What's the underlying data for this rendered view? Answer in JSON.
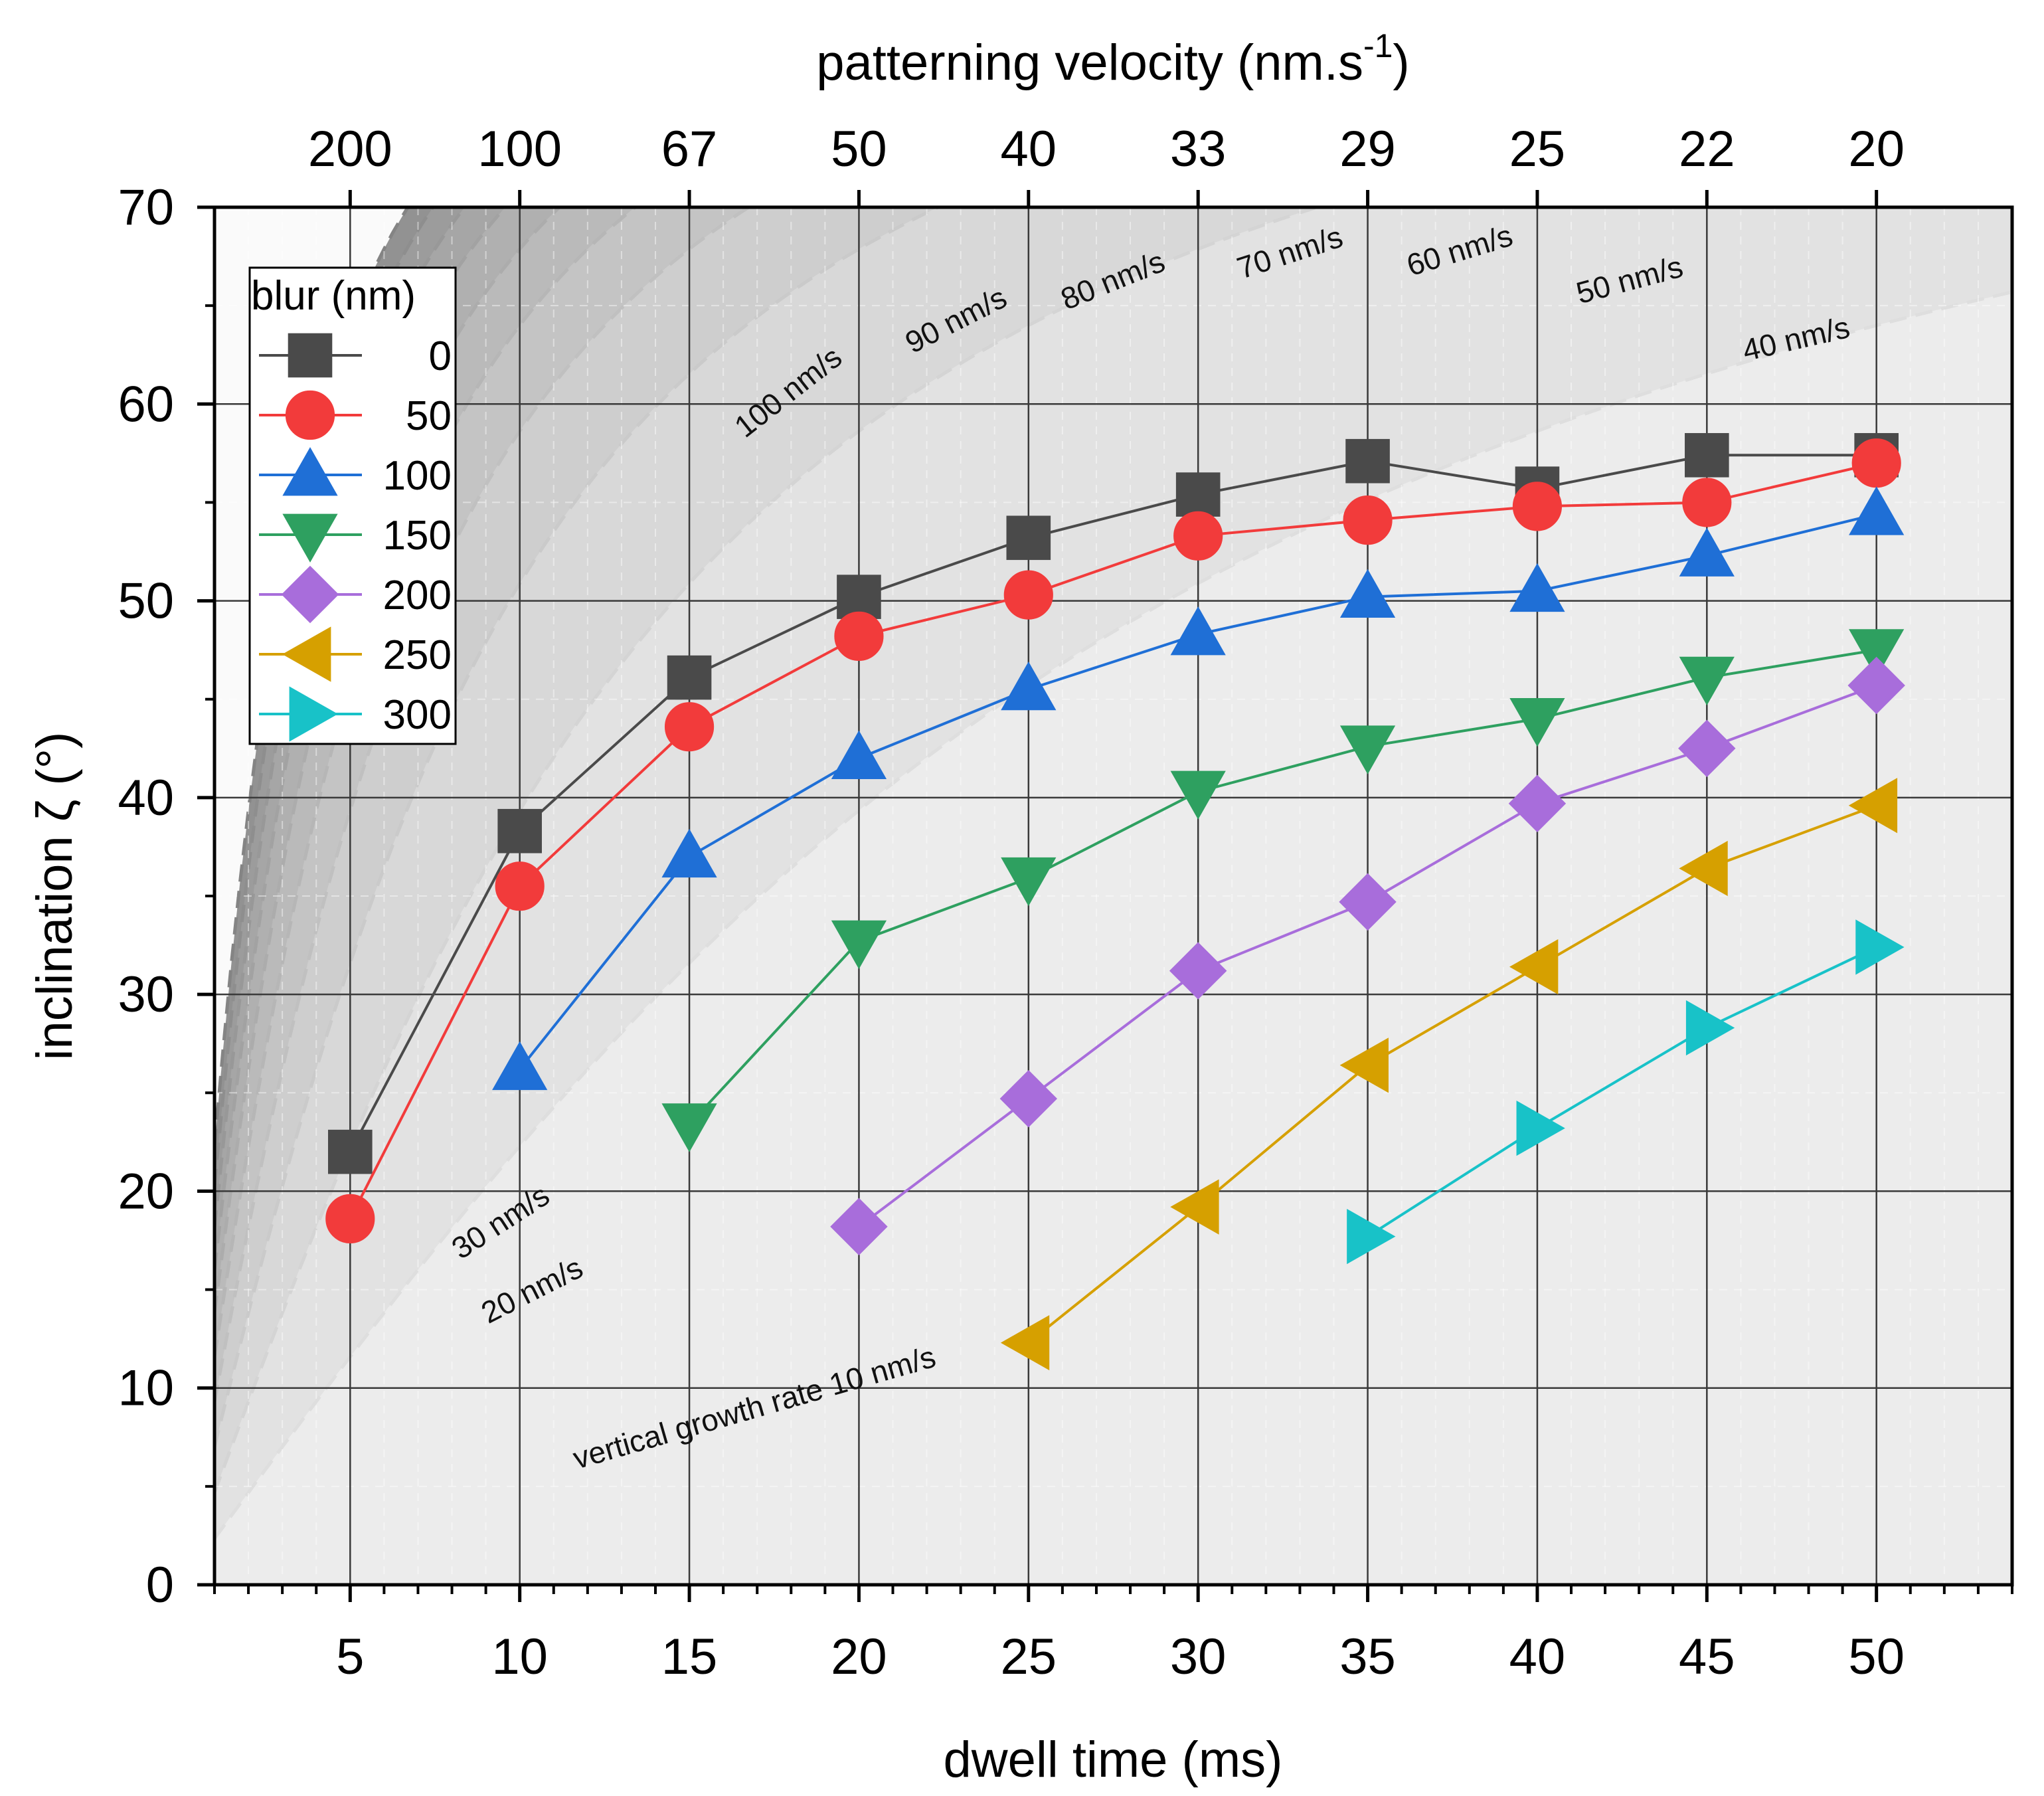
{
  "chart_data": {
    "type": "line",
    "xlabel": "dwell time (ms)",
    "ylabel": "inclination ζ (°)",
    "top_xlabel": "patterning velocity (nm.s",
    "top_xlabel_sup": "-1",
    "top_xlabel_end": ")",
    "xlim": [
      1,
      54
    ],
    "ylim": [
      0,
      70
    ],
    "x_ticks": [
      5,
      10,
      15,
      20,
      25,
      30,
      35,
      40,
      45,
      50
    ],
    "x_tick_labels": [
      "5",
      "10",
      "15",
      "20",
      "25",
      "30",
      "35",
      "40",
      "45",
      "50"
    ],
    "y_ticks": [
      0,
      10,
      20,
      30,
      40,
      50,
      60,
      70
    ],
    "y_tick_labels": [
      "0",
      "10",
      "20",
      "30",
      "40",
      "50",
      "60",
      "70"
    ],
    "top_ticks": [
      5,
      10,
      15,
      20,
      25,
      30,
      35,
      40,
      45,
      50
    ],
    "top_tick_labels": [
      "200",
      "100",
      "67",
      "50",
      "40",
      "33",
      "29",
      "25",
      "22",
      "20"
    ],
    "grid": true,
    "legend": {
      "title": "blur (nm)",
      "position": "top-left"
    },
    "series": [
      {
        "name": "0",
        "color": "#4a4a4a",
        "marker": "square",
        "x": [
          5,
          10,
          15,
          20,
          25,
          30,
          35,
          40,
          45,
          50
        ],
        "y": [
          22.0,
          38.3,
          46.1,
          50.2,
          53.2,
          55.4,
          57.1,
          55.7,
          57.4,
          57.4
        ]
      },
      {
        "name": "50",
        "color": "#f23b3b",
        "marker": "circle",
        "x": [
          5,
          10,
          15,
          20,
          25,
          30,
          35,
          40,
          45,
          50
        ],
        "y": [
          18.6,
          35.5,
          43.6,
          48.2,
          50.3,
          53.3,
          54.1,
          54.8,
          55.0,
          57.0
        ]
      },
      {
        "name": "100",
        "color": "#1f6fd6",
        "marker": "triangle-up",
        "x": [
          10,
          15,
          20,
          25,
          30,
          35,
          40,
          45,
          50
        ],
        "y": [
          26.2,
          37.0,
          42.0,
          45.5,
          48.3,
          50.2,
          50.5,
          52.3,
          54.4
        ]
      },
      {
        "name": "150",
        "color": "#2ea060",
        "marker": "triangle-down",
        "x": [
          15,
          20,
          25,
          30,
          35,
          40,
          45,
          50
        ],
        "y": [
          23.4,
          32.7,
          35.9,
          40.3,
          42.6,
          44.0,
          46.1,
          47.5
        ]
      },
      {
        "name": "200",
        "color": "#a86ddb",
        "marker": "diamond",
        "x": [
          20,
          25,
          30,
          35,
          40,
          45,
          50
        ],
        "y": [
          18.2,
          24.7,
          31.2,
          34.7,
          39.7,
          42.5,
          45.7
        ]
      },
      {
        "name": "250",
        "color": "#d6a000",
        "marker": "triangle-left",
        "x": [
          25,
          30,
          35,
          40,
          45,
          50
        ],
        "y": [
          12.3,
          19.2,
          26.4,
          31.4,
          36.4,
          39.6
        ]
      },
      {
        "name": "300",
        "color": "#18c2c8",
        "marker": "triangle-right",
        "x": [
          35,
          40,
          45,
          50
        ],
        "y": [
          17.7,
          23.2,
          28.3,
          32.4
        ]
      }
    ],
    "background_rates": [
      10,
      20,
      30,
      40,
      50,
      60,
      70,
      80,
      90,
      100
    ],
    "annotations": [
      {
        "text": "vertical growth rate 10 nm/s",
        "x": 17,
        "y": 8.5,
        "rotate": -16
      },
      {
        "text": "20 nm/s",
        "x": 10.5,
        "y": 14.5,
        "rotate": -27
      },
      {
        "text": "30 nm/s",
        "x": 9.6,
        "y": 18.0,
        "rotate": -33
      },
      {
        "text": "40 nm/s",
        "x": 47.7,
        "y": 62.8,
        "rotate": -13
      },
      {
        "text": "50 nm/s",
        "x": 42.8,
        "y": 65.8,
        "rotate": -15
      },
      {
        "text": "60 nm/s",
        "x": 37.8,
        "y": 67.3,
        "rotate": -17
      },
      {
        "text": "70 nm/s",
        "x": 32.8,
        "y": 67.2,
        "rotate": -18
      },
      {
        "text": "80 nm/s",
        "x": 27.6,
        "y": 65.8,
        "rotate": -22
      },
      {
        "text": "90 nm/s",
        "x": 23.0,
        "y": 63.8,
        "rotate": -27
      },
      {
        "text": "100 nm/s",
        "x": 18.1,
        "y": 60.2,
        "rotate": -38
      }
    ]
  }
}
